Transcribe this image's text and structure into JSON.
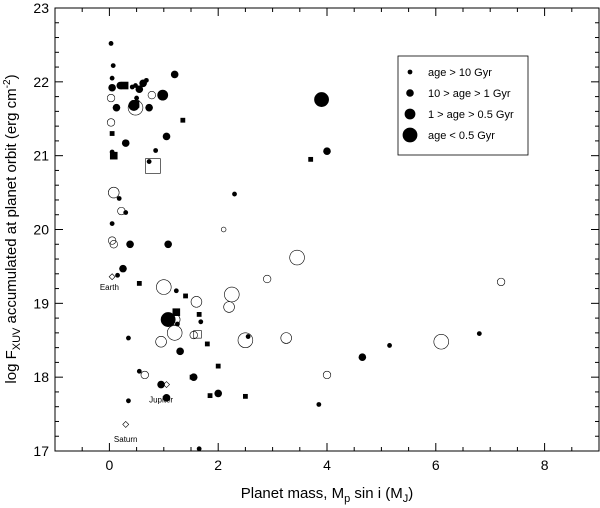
{
  "chart_data": {
    "type": "scatter",
    "xlabel": "Planet mass, M",
    "xlabel_sub": "p",
    "xlabel_rest": " sin i (M",
    "xlabel_sub2": "J",
    "xlabel_end": ")",
    "ylabel": "log F",
    "ylabel_sub": "XUV",
    "ylabel_rest": " accumulated at planet orbit (erg cm",
    "ylabel_sup": "-2",
    "ylabel_end": ")",
    "xlim": [
      -1,
      9
    ],
    "ylim": [
      17,
      23
    ],
    "xticks": [
      0,
      2,
      4,
      6,
      8
    ],
    "yticks": [
      17,
      18,
      19,
      20,
      21,
      22,
      23
    ],
    "legend_position": "top-right",
    "legend": [
      {
        "label": "age > 10 Gyr",
        "size": "small"
      },
      {
        "label": "10 > age > 1 Gyr",
        "size": "medium"
      },
      {
        "label": "1 > age > 0.5 Gyr",
        "size": "large"
      },
      {
        "label": "age < 0.5 Gyr",
        "size": "xlarge"
      }
    ],
    "annotations": [
      {
        "text": "Earth",
        "x": 0.0,
        "y": 19.22
      },
      {
        "text": "Jupiter",
        "x": 0.95,
        "y": 17.7
      },
      {
        "text": "Saturn",
        "x": 0.3,
        "y": 17.16
      }
    ],
    "points": [
      {
        "x": 0.03,
        "y": 22.52,
        "shape": "filled",
        "size": "small"
      },
      {
        "x": 0.07,
        "y": 22.22,
        "shape": "filled",
        "size": "small"
      },
      {
        "x": 0.05,
        "y": 22.05,
        "shape": "filled",
        "size": "small"
      },
      {
        "x": 0.05,
        "y": 21.92,
        "shape": "filled",
        "size": "medium"
      },
      {
        "x": 0.03,
        "y": 21.78,
        "shape": "open",
        "size": "medium"
      },
      {
        "x": 0.13,
        "y": 21.65,
        "shape": "filled",
        "size": "medium"
      },
      {
        "x": 0.03,
        "y": 21.45,
        "shape": "open",
        "size": "medium"
      },
      {
        "x": 0.05,
        "y": 21.3,
        "shape": "square-filled",
        "size": "small"
      },
      {
        "x": 0.08,
        "y": 21.0,
        "shape": "square-filled",
        "size": "medium"
      },
      {
        "x": 0.05,
        "y": 21.05,
        "shape": "filled",
        "size": "small"
      },
      {
        "x": 0.2,
        "y": 21.95,
        "shape": "filled",
        "size": "medium"
      },
      {
        "x": 0.28,
        "y": 21.95,
        "shape": "square-filled",
        "size": "medium"
      },
      {
        "x": 0.42,
        "y": 21.93,
        "shape": "filled",
        "size": "small"
      },
      {
        "x": 0.48,
        "y": 21.95,
        "shape": "filled",
        "size": "small"
      },
      {
        "x": 0.55,
        "y": 21.9,
        "shape": "filled",
        "size": "medium"
      },
      {
        "x": 0.62,
        "y": 21.98,
        "shape": "filled",
        "size": "medium"
      },
      {
        "x": 0.68,
        "y": 22.02,
        "shape": "filled",
        "size": "small"
      },
      {
        "x": 0.5,
        "y": 21.78,
        "shape": "filled",
        "size": "small"
      },
      {
        "x": 0.48,
        "y": 21.7,
        "shape": "square-filled",
        "size": "medium"
      },
      {
        "x": 0.48,
        "y": 21.65,
        "shape": "open",
        "size": "xlarge"
      },
      {
        "x": 0.45,
        "y": 21.68,
        "shape": "filled",
        "size": "large"
      },
      {
        "x": 0.73,
        "y": 21.65,
        "shape": "filled",
        "size": "medium"
      },
      {
        "x": 0.98,
        "y": 21.82,
        "shape": "filled",
        "size": "large"
      },
      {
        "x": 1.2,
        "y": 22.1,
        "shape": "filled",
        "size": "medium"
      },
      {
        "x": 0.78,
        "y": 21.82,
        "shape": "open",
        "size": "medium"
      },
      {
        "x": 0.3,
        "y": 21.17,
        "shape": "filled",
        "size": "medium"
      },
      {
        "x": 0.73,
        "y": 20.92,
        "shape": "filled",
        "size": "small"
      },
      {
        "x": 0.85,
        "y": 21.07,
        "shape": "filled",
        "size": "small"
      },
      {
        "x": 1.05,
        "y": 21.26,
        "shape": "filled",
        "size": "medium"
      },
      {
        "x": 1.35,
        "y": 21.48,
        "shape": "square-filled",
        "size": "small"
      },
      {
        "x": 0.8,
        "y": 20.86,
        "shape": "square-open",
        "size": "xlarge"
      },
      {
        "x": 3.7,
        "y": 20.95,
        "shape": "square-filled",
        "size": "small"
      },
      {
        "x": 3.9,
        "y": 21.76,
        "shape": "filled",
        "size": "xlarge"
      },
      {
        "x": 4.0,
        "y": 21.06,
        "shape": "filled",
        "size": "medium"
      },
      {
        "x": 0.08,
        "y": 20.5,
        "shape": "open",
        "size": "large"
      },
      {
        "x": 0.18,
        "y": 20.42,
        "shape": "filled",
        "size": "small"
      },
      {
        "x": 0.22,
        "y": 20.25,
        "shape": "open",
        "size": "medium"
      },
      {
        "x": 0.3,
        "y": 20.23,
        "shape": "filled",
        "size": "small"
      },
      {
        "x": 0.05,
        "y": 20.08,
        "shape": "filled",
        "size": "small"
      },
      {
        "x": 0.05,
        "y": 19.85,
        "shape": "open",
        "size": "medium"
      },
      {
        "x": 0.08,
        "y": 19.8,
        "shape": "open",
        "size": "medium"
      },
      {
        "x": 0.38,
        "y": 19.8,
        "shape": "filled",
        "size": "medium"
      },
      {
        "x": 1.08,
        "y": 19.8,
        "shape": "filled",
        "size": "medium"
      },
      {
        "x": 2.1,
        "y": 20.0,
        "shape": "open",
        "size": "small"
      },
      {
        "x": 2.3,
        "y": 20.48,
        "shape": "filled",
        "size": "small"
      },
      {
        "x": 0.25,
        "y": 19.47,
        "shape": "filled",
        "size": "medium"
      },
      {
        "x": 0.15,
        "y": 19.38,
        "shape": "filled",
        "size": "small"
      },
      {
        "x": 0.05,
        "y": 19.36,
        "shape": "diamond-open",
        "size": "small"
      },
      {
        "x": 0.55,
        "y": 19.27,
        "shape": "square-filled",
        "size": "small"
      },
      {
        "x": 1.0,
        "y": 19.22,
        "shape": "open",
        "size": "xlarge"
      },
      {
        "x": 1.23,
        "y": 19.17,
        "shape": "filled",
        "size": "small"
      },
      {
        "x": 1.4,
        "y": 19.1,
        "shape": "square-filled",
        "size": "small"
      },
      {
        "x": 1.6,
        "y": 19.02,
        "shape": "open",
        "size": "large"
      },
      {
        "x": 2.2,
        "y": 18.95,
        "shape": "open",
        "size": "large"
      },
      {
        "x": 2.25,
        "y": 19.12,
        "shape": "open",
        "size": "xlarge"
      },
      {
        "x": 2.9,
        "y": 19.33,
        "shape": "open",
        "size": "medium"
      },
      {
        "x": 3.45,
        "y": 19.62,
        "shape": "open",
        "size": "xlarge"
      },
      {
        "x": 7.2,
        "y": 19.29,
        "shape": "open",
        "size": "medium"
      },
      {
        "x": 1.23,
        "y": 18.88,
        "shape": "square-filled",
        "size": "medium"
      },
      {
        "x": 1.08,
        "y": 18.78,
        "shape": "filled",
        "size": "xlarge"
      },
      {
        "x": 1.2,
        "y": 18.78,
        "shape": "open",
        "size": "large"
      },
      {
        "x": 1.25,
        "y": 18.72,
        "shape": "filled",
        "size": "small"
      },
      {
        "x": 1.65,
        "y": 18.85,
        "shape": "square-filled",
        "size": "small"
      },
      {
        "x": 1.68,
        "y": 18.75,
        "shape": "filled",
        "size": "small"
      },
      {
        "x": 1.2,
        "y": 18.6,
        "shape": "open",
        "size": "xlarge"
      },
      {
        "x": 1.55,
        "y": 18.57,
        "shape": "open",
        "size": "medium"
      },
      {
        "x": 1.62,
        "y": 18.58,
        "shape": "square-open",
        "size": "medium"
      },
      {
        "x": 0.95,
        "y": 18.48,
        "shape": "open",
        "size": "large"
      },
      {
        "x": 0.35,
        "y": 18.53,
        "shape": "filled",
        "size": "small"
      },
      {
        "x": 1.3,
        "y": 18.35,
        "shape": "filled",
        "size": "medium"
      },
      {
        "x": 1.8,
        "y": 18.45,
        "shape": "square-filled",
        "size": "small"
      },
      {
        "x": 2.5,
        "y": 18.5,
        "shape": "open",
        "size": "xlarge"
      },
      {
        "x": 2.55,
        "y": 18.55,
        "shape": "filled",
        "size": "small"
      },
      {
        "x": 3.25,
        "y": 18.53,
        "shape": "open",
        "size": "large"
      },
      {
        "x": 4.65,
        "y": 18.27,
        "shape": "filled",
        "size": "medium"
      },
      {
        "x": 5.15,
        "y": 18.43,
        "shape": "filled",
        "size": "small"
      },
      {
        "x": 6.1,
        "y": 18.48,
        "shape": "open",
        "size": "xlarge"
      },
      {
        "x": 6.8,
        "y": 18.59,
        "shape": "filled",
        "size": "small"
      },
      {
        "x": 0.55,
        "y": 18.08,
        "shape": "filled",
        "size": "small"
      },
      {
        "x": 0.65,
        "y": 18.03,
        "shape": "open",
        "size": "medium"
      },
      {
        "x": 1.55,
        "y": 18.0,
        "shape": "filled",
        "size": "medium"
      },
      {
        "x": 1.52,
        "y": 18.0,
        "shape": "square-filled",
        "size": "small"
      },
      {
        "x": 2.0,
        "y": 18.15,
        "shape": "square-filled",
        "size": "small"
      },
      {
        "x": 4.0,
        "y": 18.03,
        "shape": "open",
        "size": "medium"
      },
      {
        "x": 0.95,
        "y": 17.9,
        "shape": "filled",
        "size": "medium"
      },
      {
        "x": 1.05,
        "y": 17.9,
        "shape": "diamond-open",
        "size": "small"
      },
      {
        "x": 0.35,
        "y": 17.68,
        "shape": "filled",
        "size": "small"
      },
      {
        "x": 1.05,
        "y": 17.72,
        "shape": "filled",
        "size": "medium"
      },
      {
        "x": 1.85,
        "y": 17.75,
        "shape": "square-filled",
        "size": "small"
      },
      {
        "x": 2.0,
        "y": 17.78,
        "shape": "filled",
        "size": "medium"
      },
      {
        "x": 2.5,
        "y": 17.74,
        "shape": "square-filled",
        "size": "small"
      },
      {
        "x": 3.85,
        "y": 17.63,
        "shape": "filled",
        "size": "small"
      },
      {
        "x": 0.3,
        "y": 17.36,
        "shape": "diamond-open",
        "size": "small"
      },
      {
        "x": 1.65,
        "y": 17.03,
        "shape": "filled",
        "size": "small"
      }
    ]
  }
}
